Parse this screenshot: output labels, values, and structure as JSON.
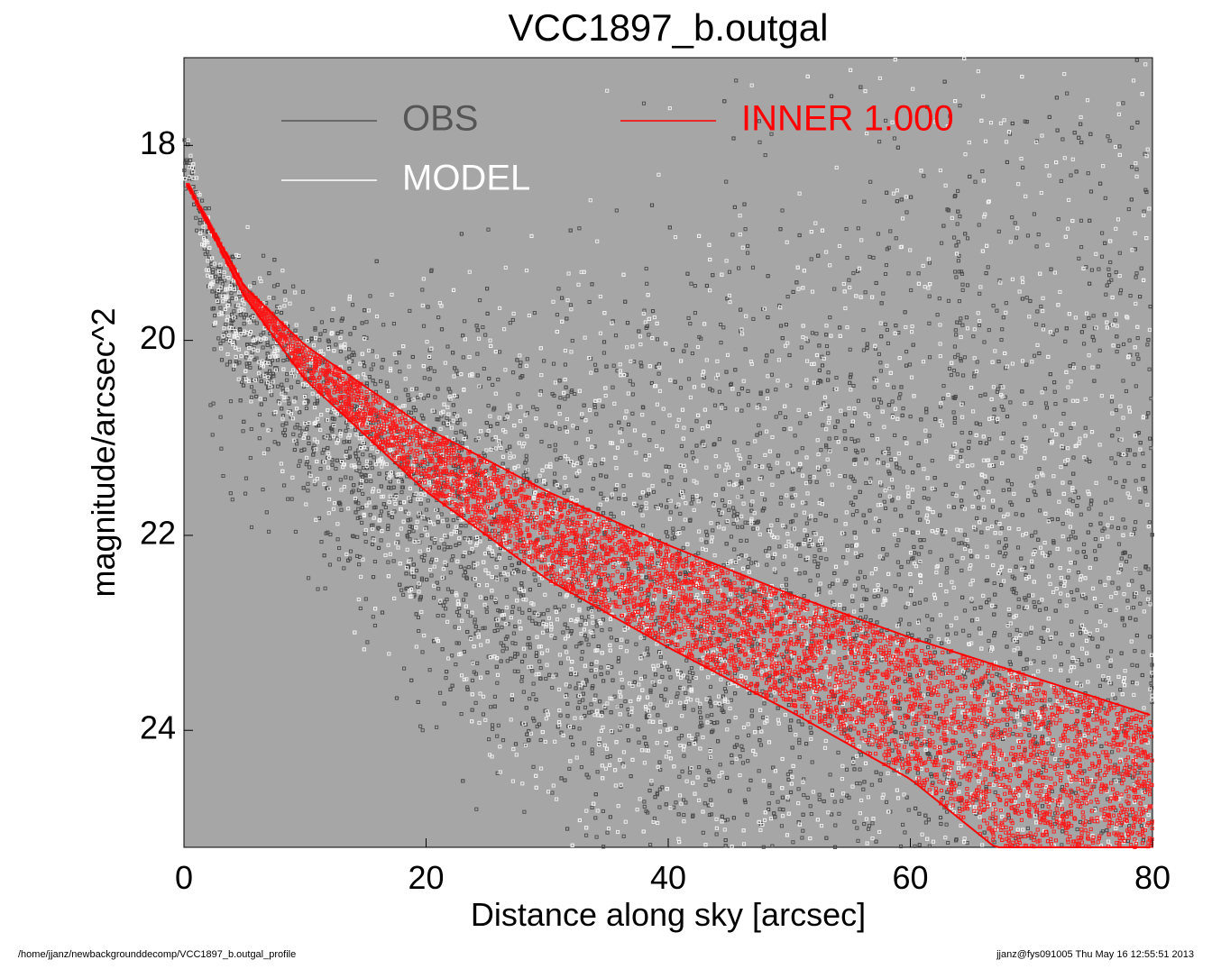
{
  "chart_data": {
    "type": "scatter",
    "title": "VCC1897_b.outgal",
    "xlabel": "Distance along sky [arcsec]",
    "ylabel": "magnitude/arcsec^2",
    "xlim": [
      0,
      80
    ],
    "ylim": [
      25.2,
      17.1
    ],
    "y_inverted": true,
    "x_ticks": [
      0,
      20,
      40,
      60,
      80
    ],
    "y_ticks": [
      18,
      20,
      22,
      24
    ],
    "grid": false,
    "background": "#a6a6a6",
    "legend_placement": "top",
    "legend": [
      {
        "label": "OBS",
        "color": "#555555"
      },
      {
        "label": "INNER  1.000",
        "color": "#ff0000"
      },
      {
        "label": "MODEL",
        "color": "#ffffff"
      }
    ],
    "series": [
      {
        "name": "OBS",
        "color": "#505050",
        "model": "noisy scatter about the model profile",
        "sample_points": [
          [
            0.5,
            18.25
          ],
          [
            3,
            19.6
          ],
          [
            5,
            19.9
          ],
          [
            10,
            20.6
          ],
          [
            20,
            21.6
          ],
          [
            30,
            22.4
          ],
          [
            40,
            22.8
          ],
          [
            50,
            22.9
          ],
          [
            60,
            23.0
          ],
          [
            70,
            23.0
          ],
          [
            80,
            23.0
          ]
        ],
        "spike": {
          "x": 64,
          "y_top": 18.4,
          "y_bottom": 20.8
        }
      },
      {
        "name": "MODEL",
        "color": "#ffffff",
        "model": "band enveloping the inner profile"
      },
      {
        "name": "INNER",
        "color": "#ff0000",
        "upper_edge": [
          [
            0.3,
            18.4
          ],
          [
            5,
            19.45
          ],
          [
            10,
            20.05
          ],
          [
            20,
            20.9
          ],
          [
            30,
            21.55
          ],
          [
            40,
            22.1
          ],
          [
            50,
            22.6
          ],
          [
            60,
            23.05
          ],
          [
            70,
            23.45
          ],
          [
            80,
            23.85
          ]
        ],
        "lower_edge": [
          [
            0.3,
            18.4
          ],
          [
            5,
            19.55
          ],
          [
            10,
            20.4
          ],
          [
            20,
            21.55
          ],
          [
            30,
            22.45
          ],
          [
            40,
            23.15
          ],
          [
            50,
            23.8
          ],
          [
            60,
            24.5
          ],
          [
            67,
            25.2
          ]
        ],
        "right_edge_bottom": [
          80,
          25.2
        ]
      }
    ]
  },
  "footer": {
    "left": "/home/jjanz/newbackgrounddecomp/VCC1897_b.outgal_profile",
    "right": "jjanz@fys091005  Thu May 16 12:55:51 2013"
  }
}
